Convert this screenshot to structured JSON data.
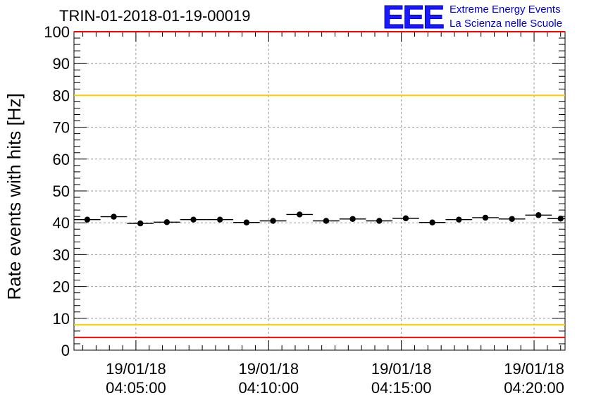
{
  "header": {
    "title": "TRIN-01-2018-01-19-00019",
    "logo_mark": "EEE",
    "logo_line1": "Extreme Energy Events",
    "logo_line2": "La Scienza nelle Scuole"
  },
  "chart_data": {
    "type": "scatter",
    "title": "TRIN-01-2018-01-19-00019",
    "ylabel": "Rate events with hits [Hz]",
    "xlabel": "",
    "ylim": [
      0,
      100
    ],
    "xlim": [
      "2018-01-19 04:02:40",
      "2018-01-19 04:21:10"
    ],
    "yticks": [
      0,
      10,
      20,
      30,
      40,
      50,
      60,
      70,
      80,
      90,
      100
    ],
    "xticks": [
      {
        "date": "19/01/18",
        "time": "04:05:00"
      },
      {
        "date": "19/01/18",
        "time": "04:10:00"
      },
      {
        "date": "19/01/18",
        "time": "04:15:00"
      },
      {
        "date": "19/01/18",
        "time": "04:20:00"
      }
    ],
    "grid": true,
    "bin_width_seconds": 60,
    "x": [
      "04:03:10",
      "04:04:10",
      "04:05:10",
      "04:06:10",
      "04:07:10",
      "04:08:10",
      "04:09:10",
      "04:10:10",
      "04:11:10",
      "04:12:10",
      "04:13:10",
      "04:14:10",
      "04:15:10",
      "04:16:10",
      "04:17:10",
      "04:18:10",
      "04:19:10",
      "04:20:10",
      "04:21:00"
    ],
    "values": [
      41.0,
      41.9,
      39.8,
      40.2,
      41.0,
      41.0,
      40.1,
      40.6,
      42.6,
      40.6,
      41.2,
      40.6,
      41.4,
      40.1,
      41.0,
      41.6,
      41.2,
      42.4,
      41.3
    ],
    "reference_lines": [
      {
        "y": 100,
        "color": "#ff0000"
      },
      {
        "y": 80,
        "color": "#ffcc00"
      },
      {
        "y": 8,
        "color": "#ffcc00"
      },
      {
        "y": 4,
        "color": "#ff0000"
      }
    ]
  }
}
